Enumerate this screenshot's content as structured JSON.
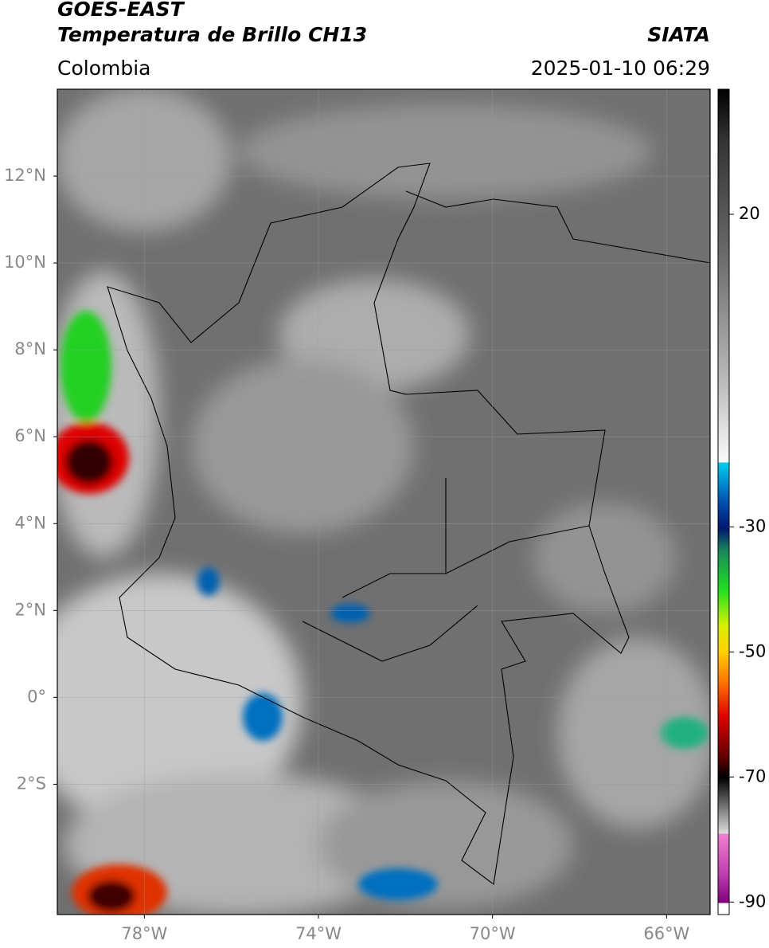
{
  "header": {
    "title": "GOES-EAST",
    "subtitle": "Temperatura de Brillo CH13",
    "source": "SIATA",
    "region": "Colombia",
    "timestamp": "2025-01-10 06:29"
  },
  "map": {
    "xlim": [
      -80,
      -65
    ],
    "ylim": [
      -5,
      14
    ],
    "xticks": [
      {
        "value": -78,
        "label": "78°W"
      },
      {
        "value": -74,
        "label": "74°W"
      },
      {
        "value": -70,
        "label": "70°W"
      },
      {
        "value": -66,
        "label": "66°W"
      }
    ],
    "yticks": [
      {
        "value": 12,
        "label": "12°N"
      },
      {
        "value": 10,
        "label": "10°N"
      },
      {
        "value": 8,
        "label": "8°N"
      },
      {
        "value": 6,
        "label": "6°N"
      },
      {
        "value": 4,
        "label": "4°N"
      },
      {
        "value": 2,
        "label": "2°N"
      },
      {
        "value": 0,
        "label": "0°"
      },
      {
        "value": -2,
        "label": "2°S"
      }
    ],
    "grid": true
  },
  "colorbar": {
    "lim": [
      -92,
      40
    ],
    "ticks": [
      20,
      -30,
      -50,
      -70,
      -90
    ]
  }
}
